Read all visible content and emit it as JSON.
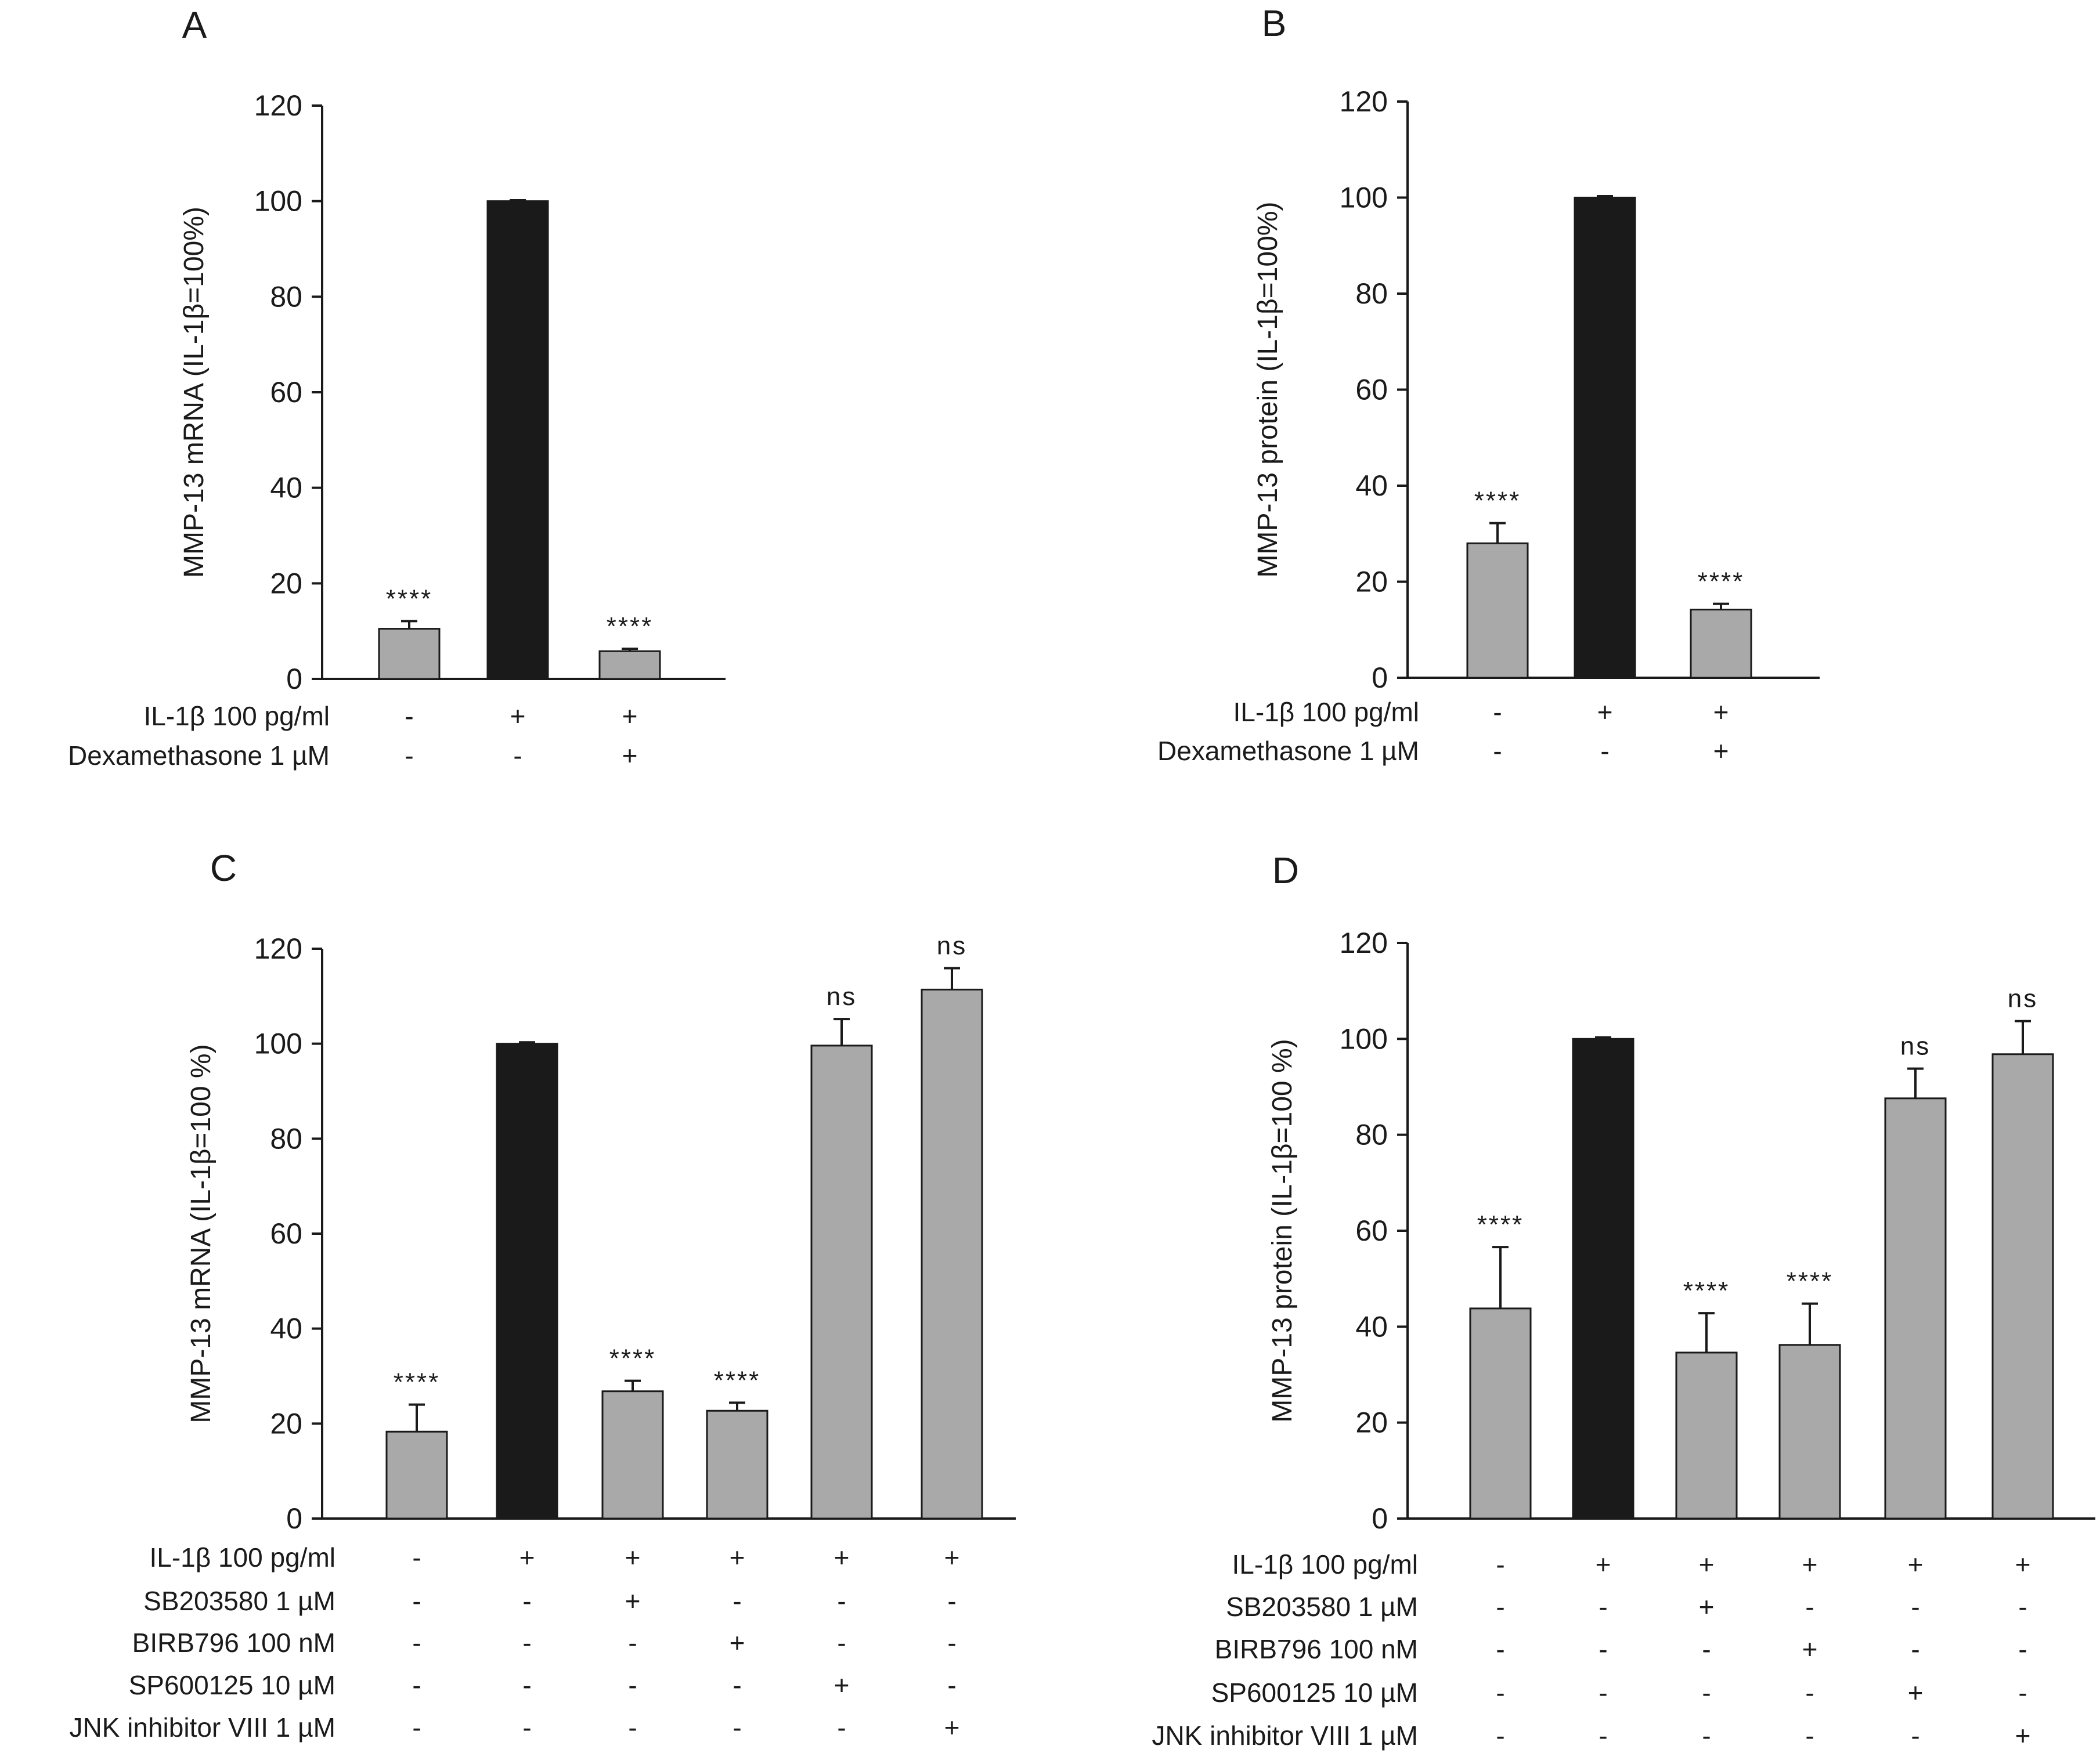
{
  "colors": {
    "treated": "#a9a9a9",
    "control": "#1a1a1a",
    "axis": "#1a1a1a",
    "stroke": "#1a1a1a"
  },
  "chart_data": [
    {
      "panel": "A",
      "type": "bar",
      "ylabel": "MMP-13 mRNA (IL-1β=100%)",
      "ylim": [
        0,
        120
      ],
      "yticks": [
        0,
        20,
        40,
        60,
        80,
        100,
        120
      ],
      "values": [
        10.5,
        100,
        5.8
      ],
      "errors": [
        1.6,
        0.2,
        0.5
      ],
      "bar_colors": [
        "treated",
        "control",
        "treated"
      ],
      "significance": [
        "****",
        "",
        "****"
      ],
      "conditions": [
        {
          "label": "IL-1β 100 pg/ml",
          "signs": [
            "-",
            "+",
            "+"
          ]
        },
        {
          "label": "Dexamethasone 1 µM",
          "signs": [
            "-",
            "-",
            "+"
          ]
        }
      ]
    },
    {
      "panel": "B",
      "type": "bar",
      "ylabel": "MMP-13 protein (IL-1β=100%)",
      "ylim": [
        0,
        120
      ],
      "yticks": [
        0,
        20,
        40,
        60,
        80,
        100,
        120
      ],
      "values": [
        28,
        100,
        14.2
      ],
      "errors": [
        4.2,
        0.3,
        1.2
      ],
      "bar_colors": [
        "treated",
        "control",
        "treated"
      ],
      "significance": [
        "****",
        "",
        "****"
      ],
      "conditions": [
        {
          "label": "IL-1β 100 pg/ml",
          "signs": [
            "-",
            "+",
            "+"
          ]
        },
        {
          "label": "Dexamethasone 1 µM",
          "signs": [
            "-",
            "-",
            "+"
          ]
        }
      ]
    },
    {
      "panel": "C",
      "type": "bar",
      "ylabel": "MMP-13 mRNA (IL-1β=100 %)",
      "ylim": [
        0,
        120
      ],
      "yticks": [
        0,
        20,
        40,
        60,
        80,
        100,
        120
      ],
      "values": [
        18.3,
        100,
        26.8,
        22.7,
        99.6,
        111.4
      ],
      "errors": [
        5.7,
        0.3,
        2.2,
        1.7,
        5.6,
        4.5
      ],
      "bar_colors": [
        "treated",
        "control",
        "treated",
        "treated",
        "treated",
        "treated"
      ],
      "significance": [
        "****",
        "",
        "****",
        "****",
        "ns",
        "ns"
      ],
      "conditions": [
        {
          "label": "IL-1β 100 pg/ml",
          "signs": [
            "-",
            "+",
            "+",
            "+",
            "+",
            "+"
          ]
        },
        {
          "label": "SB203580 1 µM",
          "signs": [
            "-",
            "-",
            "+",
            "-",
            "-",
            "-"
          ]
        },
        {
          "label": "BIRB796 100 nM",
          "signs": [
            "-",
            "-",
            "-",
            "+",
            "-",
            "-"
          ]
        },
        {
          "label": "SP600125 10 µM",
          "signs": [
            "-",
            "-",
            "-",
            "-",
            "+",
            "-"
          ]
        },
        {
          "label": "JNK inhibitor VIII 1 µM",
          "signs": [
            "-",
            "-",
            "-",
            "-",
            "-",
            "+"
          ]
        }
      ]
    },
    {
      "panel": "D",
      "type": "bar",
      "ylabel": "MMP-13 protein (IL-1β=100 %)",
      "ylim": [
        0,
        120
      ],
      "yticks": [
        0,
        20,
        40,
        60,
        80,
        100,
        120
      ],
      "values": [
        43.8,
        100,
        34.6,
        36.2,
        87.6,
        96.8
      ],
      "errors": [
        12.8,
        0.3,
        8.2,
        8.6,
        6.2,
        6.9
      ],
      "bar_colors": [
        "treated",
        "control",
        "treated",
        "treated",
        "treated",
        "treated"
      ],
      "significance": [
        "****",
        "",
        "****",
        "****",
        "ns",
        "ns"
      ],
      "conditions": [
        {
          "label": "IL-1β 100 pg/ml",
          "signs": [
            "-",
            "+",
            "+",
            "+",
            "+",
            "+"
          ]
        },
        {
          "label": "SB203580 1 µM",
          "signs": [
            "-",
            "-",
            "+",
            "-",
            "-",
            "-"
          ]
        },
        {
          "label": "BIRB796 100 nM",
          "signs": [
            "-",
            "-",
            "-",
            "+",
            "-",
            "-"
          ]
        },
        {
          "label": "SP600125 10 µM",
          "signs": [
            "-",
            "-",
            "-",
            "-",
            "+",
            "-"
          ]
        },
        {
          "label": "JNK inhibitor VIII 1 µM",
          "signs": [
            "-",
            "-",
            "-",
            "-",
            "-",
            "+"
          ]
        }
      ]
    }
  ]
}
